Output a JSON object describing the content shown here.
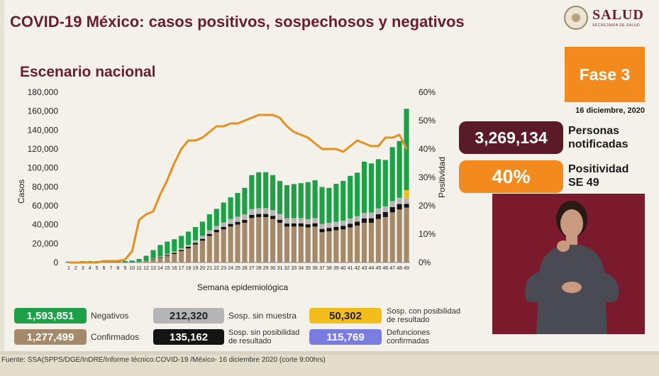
{
  "header": {
    "title": "COVID-19 México: casos positivos, sospechosos y negativos",
    "subtitle": "Escenario nacional",
    "logo_text": "SALUD",
    "logo_subtext": "SECRETARÍA DE SALUD"
  },
  "phase": {
    "label": "Fase 3",
    "date": "16 diciembre, 2020"
  },
  "stats": {
    "persons_value": "3,269,134",
    "persons_label_1": "Personas",
    "persons_label_2": "notificadas",
    "positivity_value": "40%",
    "positivity_label_1": "Positividad",
    "positivity_label_2": "SE 49"
  },
  "legend": {
    "negativos_value": "1,593,851",
    "negativos_label": "Negativos",
    "sin_muestra_value": "212,320",
    "sin_muestra_label": "Sosp. sin muestra",
    "con_posibilidad_value": "50,302",
    "con_posibilidad_label_1": "Sosp. con posibilidad",
    "con_posibilidad_label_2": "de resultado",
    "confirmados_value": "1,277,499",
    "confirmados_label": "Confirmados",
    "sin_posibilidad_value": "135,162",
    "sin_posibilidad_label_1": "Sosp. sin posibilidad",
    "sin_posibilidad_label_2": "de resultado",
    "defunciones_value": "115,769",
    "defunciones_label_1": "Defunciones",
    "defunciones_label_2": "confirmadas"
  },
  "colors": {
    "confirmados": "#a48a6a",
    "sin_posibilidad": "#141414",
    "sin_muestra": "#b5b5b5",
    "con_posibilidad": "#f2be1e",
    "negativos": "#1ea048",
    "positividad": "#e8901e",
    "title": "#6b1d2e",
    "defunciones": "#7b7ce0"
  },
  "footer": {
    "source": "Fuente: SSA(SPPS/DGE/InDRE/Informe técnico.COVID-19 /México- 16 diciembre 2020 (corte 9:00hrs)"
  },
  "chart_data": {
    "type": "bar",
    "stacked": true,
    "xlabel": "Semana epidemiológica",
    "ylabel": "Casos",
    "y2label": "Positividad",
    "ylim": [
      0,
      180000
    ],
    "y2lim": [
      0,
      60
    ],
    "yticks": [
      "0",
      "20,000",
      "40,000",
      "60,000",
      "80,000",
      "100,000",
      "120,000",
      "140,000",
      "160,000",
      "180,000"
    ],
    "y2ticks": [
      "0%",
      "10%",
      "20%",
      "30%",
      "40%",
      "50%",
      "60%"
    ],
    "categories": [
      "1",
      "2",
      "3",
      "4",
      "5",
      "6",
      "7",
      "8",
      "9",
      "10",
      "11",
      "12",
      "13",
      "14",
      "15",
      "16",
      "17",
      "18",
      "19",
      "20",
      "21",
      "22",
      "23",
      "24",
      "25",
      "26",
      "27",
      "28",
      "29",
      "30",
      "31",
      "32",
      "33",
      "34",
      "35",
      "36",
      "37",
      "38",
      "39",
      "40",
      "41",
      "42",
      "43",
      "44",
      "45",
      "46",
      "47",
      "48",
      "49"
    ],
    "series": [
      {
        "name": "Confirmados",
        "values": [
          0,
          0,
          0,
          0,
          0,
          0,
          0,
          0,
          10,
          100,
          500,
          1500,
          3000,
          5000,
          7000,
          9000,
          12000,
          15000,
          19000,
          23000,
          28000,
          32000,
          35000,
          38000,
          40000,
          42000,
          47000,
          48000,
          48000,
          46000,
          42000,
          38000,
          38000,
          38000,
          37000,
          38000,
          32000,
          33000,
          34000,
          35000,
          37000,
          39000,
          42000,
          42000,
          46000,
          48000,
          53000,
          56000,
          58000
        ]
      },
      {
        "name": "Sosp. sin posibilidad de resultado",
        "values": [
          0,
          0,
          0,
          0,
          0,
          0,
          0,
          0,
          0,
          0,
          100,
          300,
          500,
          700,
          900,
          1100,
          1300,
          1500,
          1800,
          2000,
          2200,
          2500,
          2700,
          2800,
          3000,
          3100,
          3300,
          3300,
          3300,
          3300,
          3200,
          3200,
          3300,
          3400,
          3400,
          3500,
          3500,
          3600,
          3700,
          3800,
          4000,
          4200,
          4600,
          4800,
          5100,
          5300,
          5600,
          5800,
          4000
        ]
      },
      {
        "name": "Sosp. sin muestra",
        "values": [
          0,
          0,
          0,
          0,
          0,
          0,
          0,
          0,
          0,
          0,
          100,
          300,
          600,
          800,
          1200,
          1500,
          1800,
          2200,
          2700,
          3200,
          3800,
          4200,
          4700,
          5100,
          5500,
          5800,
          6100,
          6100,
          6200,
          6100,
          6000,
          5600,
          5600,
          5500,
          5500,
          5400,
          5300,
          5300,
          5400,
          5500,
          5600,
          5800,
          5900,
          5900,
          6100,
          6100,
          6300,
          6400,
          5500
        ]
      },
      {
        "name": "Sosp. con posibilidad de resultado",
        "values": [
          0,
          0,
          0,
          0,
          0,
          0,
          0,
          0,
          0,
          0,
          0,
          0,
          0,
          0,
          0,
          0,
          0,
          0,
          0,
          0,
          0,
          0,
          0,
          0,
          0,
          0,
          0,
          0,
          0,
          0,
          0,
          0,
          0,
          0,
          0,
          0,
          0,
          0,
          0,
          0,
          0,
          0,
          0,
          0,
          0,
          0,
          0,
          200,
          9000
        ]
      },
      {
        "name": "Negativos",
        "values": [
          1000,
          1000,
          1500,
          1500,
          1500,
          1500,
          1500,
          1500,
          1500,
          2000,
          3000,
          5000,
          9000,
          12000,
          13000,
          13000,
          13000,
          14000,
          14000,
          15000,
          17000,
          18000,
          21000,
          23000,
          25000,
          28000,
          36000,
          38000,
          38000,
          37000,
          35000,
          35000,
          36000,
          37000,
          39000,
          40000,
          39000,
          37000,
          40000,
          42000,
          45000,
          46000,
          54000,
          52000,
          52000,
          49000,
          57000,
          60000,
          86000
        ]
      }
    ],
    "line": {
      "name": "Positividad",
      "axis": "right",
      "values": [
        0,
        0,
        0,
        0,
        0,
        0.5,
        0.5,
        0.5,
        1,
        4,
        15,
        17,
        18,
        24,
        29,
        35,
        40,
        43,
        43,
        44,
        46,
        48,
        48,
        49,
        49,
        50,
        51,
        52,
        52,
        52,
        51,
        48,
        46,
        45,
        44,
        42,
        40,
        40,
        40,
        39,
        41,
        43,
        42,
        41,
        41,
        44,
        44,
        45,
        40
      ]
    }
  }
}
